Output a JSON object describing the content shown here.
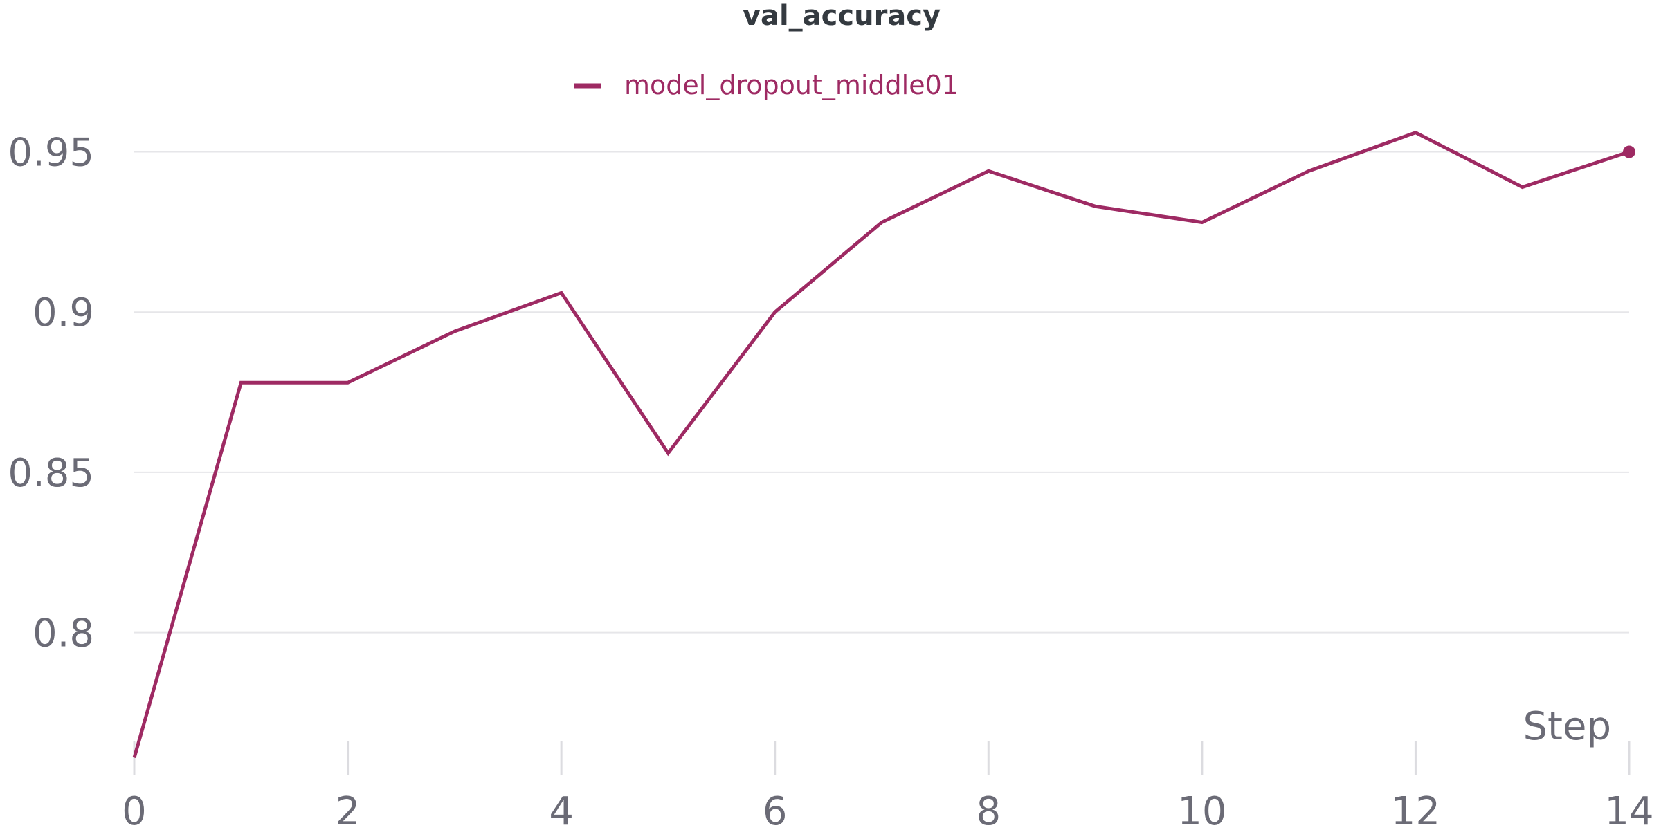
{
  "chart_data": {
    "type": "line",
    "title": "val_accuracy",
    "xlabel": "Step",
    "ylabel": "",
    "xlim": [
      0,
      14
    ],
    "ylim": [
      0.76,
      0.965
    ],
    "x_ticks": [
      0,
      2,
      4,
      6,
      8,
      10,
      12,
      14
    ],
    "x_tick_labels": [
      "0",
      "2",
      "4",
      "6",
      "8",
      "10",
      "12",
      "14"
    ],
    "y_ticks": [
      0.8,
      0.85,
      0.9,
      0.95
    ],
    "y_tick_labels": [
      "0.8",
      "0.85",
      "0.9",
      "0.95"
    ],
    "grid": true,
    "legend_position": "top-center",
    "series": [
      {
        "name": "model_dropout_middle01",
        "color": "#9e2a63",
        "x": [
          0,
          1,
          2,
          3,
          4,
          5,
          6,
          7,
          8,
          9,
          10,
          11,
          12,
          13,
          14
        ],
        "values": [
          0.761,
          0.878,
          0.878,
          0.894,
          0.906,
          0.856,
          0.9,
          0.928,
          0.944,
          0.933,
          0.928,
          0.944,
          0.956,
          0.939,
          0.95
        ]
      }
    ]
  }
}
